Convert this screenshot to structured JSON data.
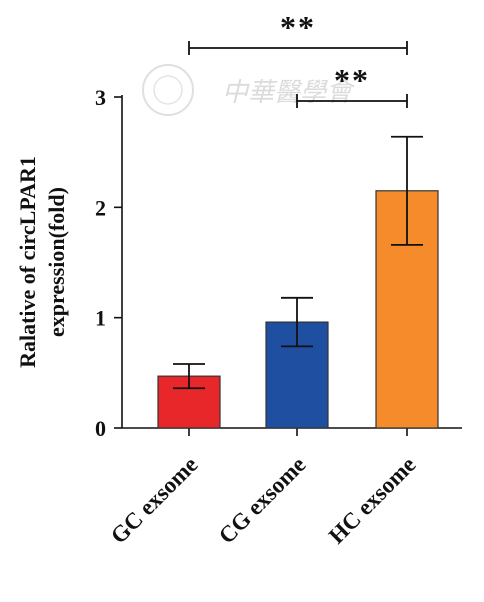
{
  "chart_data": {
    "type": "bar",
    "categories": [
      "GC exsome",
      "CG exsome",
      "HC exsome"
    ],
    "values": [
      0.47,
      0.96,
      2.15
    ],
    "error": [
      0.11,
      0.22,
      0.49
    ],
    "colors": [
      "#e8272b",
      "#1f4fa0",
      "#f58b2a"
    ],
    "ylabel_line1": "Ralative of circLPAR1",
    "ylabel_line2": "expression(fold)",
    "ylim": [
      0,
      3
    ],
    "yticks": [
      0,
      1,
      2,
      3
    ],
    "grid": false,
    "significance": [
      {
        "from": "GC exsome",
        "to": "HC exsome",
        "label": "**"
      },
      {
        "from": "CG exsome",
        "to": "HC exsome",
        "label": "**"
      }
    ]
  },
  "watermark": {
    "text": "中華醫學會"
  }
}
